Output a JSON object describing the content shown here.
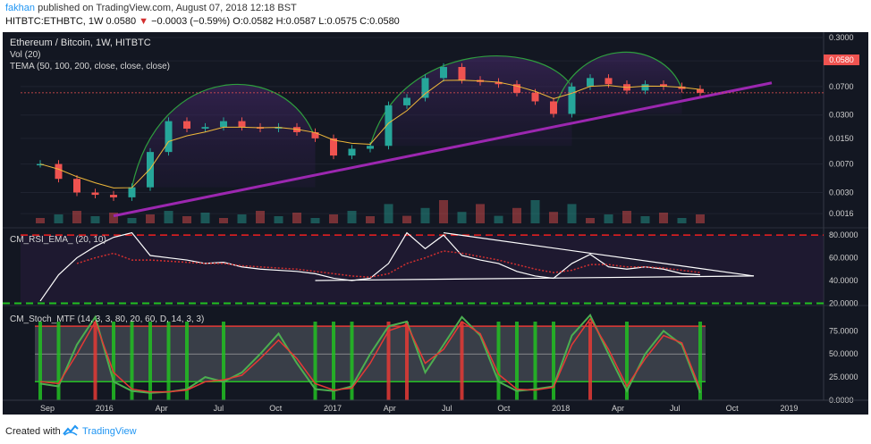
{
  "header": {
    "author": "fakhan",
    "published_text": " published on TradingView.com, August 07, 2018 12:18 BST",
    "symbol_line_a": "HITBTC:ETHBTC, 1W",
    "price": "0.0580",
    "change_arrow": "▼",
    "change": "−0.0003 (−0.59%)",
    "ohlc": "O:0.0582 H:0.0587 L:0.0575 C:0.0580"
  },
  "legend": {
    "title": "Ethereum / Bitcoin, 1W, HITBTC",
    "vol": "Vol (20)",
    "tema": "TEMA (50, 100, 200, close, close, close)",
    "rsi": "CM_RSI_EMA_ (20, 10)",
    "stoch": "CM_Stoch_MTF (14, 3, 3, 80, 20, 60, D, 14, 3, 3)"
  },
  "price_axis": {
    "labels": [
      "0.3000",
      "0.1500",
      "0.0700",
      "0.0300",
      "0.0150",
      "0.0070",
      "0.0030",
      "0.0016"
    ],
    "current_tag": "0.0580"
  },
  "rsi_axis": {
    "labels": [
      "80.0000",
      "60.0000",
      "40.0000",
      "20.0000"
    ]
  },
  "stoch_axis": {
    "labels": [
      "75.0000",
      "50.0000",
      "25.0000",
      "0.0000"
    ]
  },
  "time_axis": {
    "labels": [
      "Sep",
      "2016",
      "Apr",
      "Jul",
      "Oct",
      "2017",
      "Apr",
      "Jul",
      "Oct",
      "2018",
      "Apr",
      "Jul",
      "Oct",
      "2019"
    ]
  },
  "footer": {
    "created": "Created with",
    "brand": "TradingView"
  },
  "colors": {
    "background": "#131722",
    "bull": "#26a69a",
    "bear": "#ef5350",
    "trendline": "#9c27b0",
    "arc": "#2e9e3e",
    "tema": "#f0b93a",
    "rsi": "#ffffff",
    "rsi_ema": "#d32f2f",
    "stoch_k": "#4caf50",
    "stoch_d": "#e53935"
  },
  "chart_data": [
    {
      "type": "line",
      "title": "Ethereum / Bitcoin, 1W, HITBTC",
      "x": [
        "2015-08",
        "2015-09",
        "2015-10",
        "2015-11",
        "2015-12",
        "2016-01",
        "2016-02",
        "2016-03",
        "2016-04",
        "2016-05",
        "2016-06",
        "2016-07",
        "2016-08",
        "2016-09",
        "2016-10",
        "2016-11",
        "2016-12",
        "2017-01",
        "2017-02",
        "2017-03",
        "2017-04",
        "2017-05",
        "2017-06",
        "2017-07",
        "2017-08",
        "2017-09",
        "2017-10",
        "2017-11",
        "2017-12",
        "2018-01",
        "2018-02",
        "2018-03",
        "2018-04",
        "2018-05",
        "2018-06",
        "2018-07",
        "2018-08"
      ],
      "series": [
        {
          "values": [
            0.007,
            0.0045,
            0.003,
            0.0028,
            0.0026,
            0.0035,
            0.01,
            0.025,
            0.02,
            0.021,
            0.025,
            0.021,
            0.02,
            0.021,
            0.018,
            0.015,
            0.009,
            0.011,
            0.012,
            0.04,
            0.05,
            0.09,
            0.125,
            0.085,
            0.08,
            0.075,
            0.058,
            0.045,
            0.031,
            0.07,
            0.09,
            0.075,
            0.062,
            0.075,
            0.07,
            0.065,
            0.058
          ]
        }
      ],
      "ylim": [
        0.0012,
        0.3
      ],
      "yscale": "log"
    },
    {
      "type": "line",
      "title": "CM_RSI_EMA_ (20, 10)",
      "x": [
        "2015-08",
        "2015-09",
        "2015-10",
        "2015-11",
        "2015-12",
        "2016-01",
        "2016-02",
        "2016-03",
        "2016-04",
        "2016-05",
        "2016-06",
        "2016-07",
        "2016-08",
        "2016-09",
        "2016-10",
        "2016-11",
        "2016-12",
        "2017-01",
        "2017-02",
        "2017-03",
        "2017-04",
        "2017-05",
        "2017-06",
        "2017-07",
        "2017-08",
        "2017-09",
        "2017-10",
        "2017-11",
        "2017-12",
        "2018-01",
        "2018-02",
        "2018-03",
        "2018-04",
        "2018-05",
        "2018-06",
        "2018-07",
        "2018-08"
      ],
      "series": [
        {
          "values": [
            22,
            45,
            60,
            70,
            78,
            82,
            62,
            60,
            58,
            55,
            56,
            52,
            50,
            49,
            48,
            46,
            42,
            40,
            42,
            55,
            82,
            68,
            80,
            62,
            58,
            55,
            48,
            44,
            42,
            55,
            63,
            52,
            50,
            52,
            50,
            46,
            45
          ]
        },
        {
          "values": [
            null,
            null,
            55,
            60,
            64,
            58,
            58,
            57,
            56,
            55,
            55,
            53,
            52,
            51,
            50,
            48,
            46,
            44,
            43,
            46,
            55,
            60,
            66,
            64,
            61,
            58,
            54,
            50,
            47,
            49,
            54,
            54,
            52,
            52,
            51,
            49,
            47
          ]
        }
      ],
      "ylim": [
        18,
        84
      ]
    },
    {
      "type": "line",
      "title": "CM_Stoch_MTF (14, 3, 3, 80, 20, 60, D, 14, 3, 3)",
      "x": [
        "2015-08",
        "2015-09",
        "2015-10",
        "2015-11",
        "2015-12",
        "2016-01",
        "2016-02",
        "2016-03",
        "2016-04",
        "2016-05",
        "2016-06",
        "2016-07",
        "2016-08",
        "2016-09",
        "2016-10",
        "2016-11",
        "2016-12",
        "2017-01",
        "2017-02",
        "2017-03",
        "2017-04",
        "2017-05",
        "2017-06",
        "2017-07",
        "2017-08",
        "2017-09",
        "2017-10",
        "2017-11",
        "2017-12",
        "2018-01",
        "2018-02",
        "2018-03",
        "2018-04",
        "2018-05",
        "2018-06",
        "2018-07",
        "2018-08"
      ],
      "series": [
        {
          "values": [
            18,
            15,
            60,
            90,
            20,
            10,
            8,
            9,
            12,
            25,
            20,
            30,
            50,
            72,
            40,
            12,
            10,
            15,
            50,
            80,
            85,
            30,
            60,
            90,
            70,
            20,
            10,
            12,
            15,
            70,
            92,
            50,
            10,
            50,
            75,
            60,
            8
          ]
        },
        {
          "values": [
            20,
            18,
            50,
            85,
            30,
            12,
            9,
            9,
            11,
            20,
            22,
            27,
            45,
            65,
            45,
            18,
            11,
            13,
            40,
            75,
            82,
            40,
            55,
            85,
            72,
            28,
            12,
            11,
            14,
            60,
            88,
            55,
            15,
            45,
            70,
            62,
            12
          ]
        }
      ],
      "ylim": [
        0,
        85
      ]
    }
  ]
}
